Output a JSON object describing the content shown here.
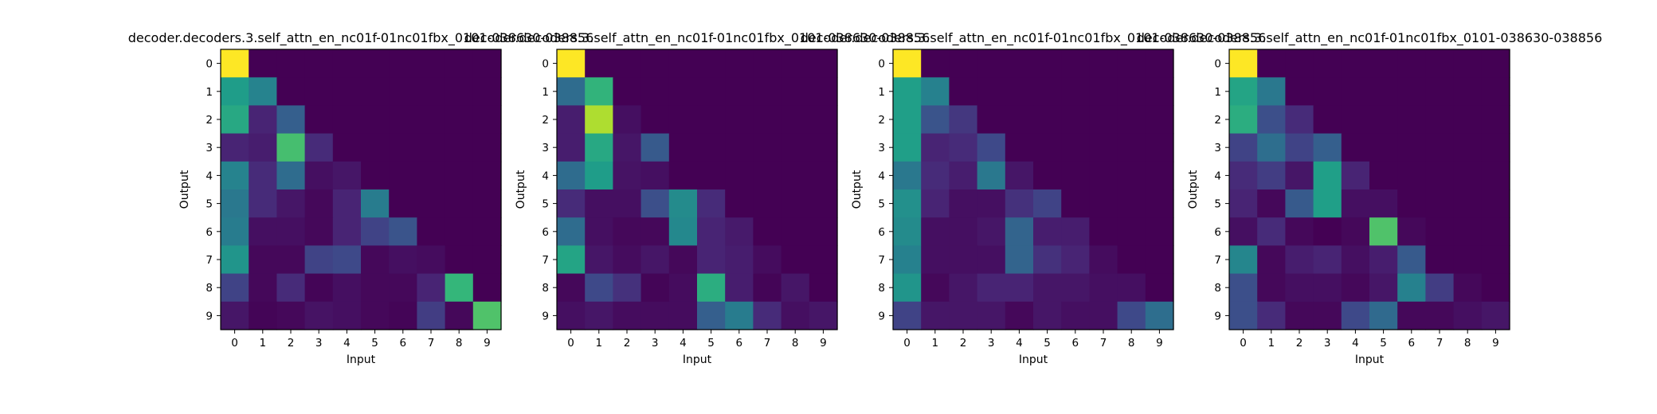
{
  "chart_data": [
    {
      "type": "heatmap",
      "title": "decoder.decoders.3.self_attn_en_nc01f-01nc01fbx_0101-038630-038856",
      "xlabel": "Input",
      "ylabel": "Output",
      "x_ticks": [
        "0",
        "1",
        "2",
        "3",
        "4",
        "5",
        "6",
        "7",
        "8",
        "9"
      ],
      "y_ticks": [
        "0",
        "1",
        "2",
        "3",
        "4",
        "5",
        "6",
        "7",
        "8",
        "9"
      ],
      "colormap": "viridis",
      "value_range": [
        0,
        1
      ],
      "values": [
        [
          1.0,
          0.0,
          0.0,
          0.0,
          0.0,
          0.0,
          0.0,
          0.0,
          0.0,
          0.0
        ],
        [
          0.55,
          0.45,
          0.0,
          0.0,
          0.0,
          0.0,
          0.0,
          0.0,
          0.0,
          0.0
        ],
        [
          0.6,
          0.1,
          0.3,
          0.0,
          0.0,
          0.0,
          0.0,
          0.0,
          0.0,
          0.0
        ],
        [
          0.1,
          0.08,
          0.7,
          0.12,
          0.0,
          0.0,
          0.0,
          0.0,
          0.0,
          0.0
        ],
        [
          0.45,
          0.12,
          0.35,
          0.04,
          0.06,
          0.0,
          0.0,
          0.0,
          0.0,
          0.0
        ],
        [
          0.4,
          0.12,
          0.06,
          0.02,
          0.1,
          0.42,
          0.0,
          0.0,
          0.0,
          0.0
        ],
        [
          0.42,
          0.04,
          0.04,
          0.02,
          0.1,
          0.2,
          0.26,
          0.0,
          0.0,
          0.0
        ],
        [
          0.52,
          0.02,
          0.02,
          0.2,
          0.22,
          0.02,
          0.04,
          0.03,
          0.0,
          0.0
        ],
        [
          0.2,
          0.02,
          0.12,
          0.01,
          0.04,
          0.02,
          0.02,
          0.1,
          0.66,
          0.0
        ],
        [
          0.06,
          0.01,
          0.02,
          0.05,
          0.04,
          0.02,
          0.01,
          0.18,
          0.02,
          0.72
        ]
      ]
    },
    {
      "type": "heatmap",
      "title": "decoder.decoders.3.self_attn_en_nc01f-01nc01fbx_0101-038630-038856",
      "xlabel": "Input",
      "ylabel": "Output",
      "x_ticks": [
        "0",
        "1",
        "2",
        "3",
        "4",
        "5",
        "6",
        "7",
        "8",
        "9"
      ],
      "y_ticks": [
        "0",
        "1",
        "2",
        "3",
        "4",
        "5",
        "6",
        "7",
        "8",
        "9"
      ],
      "colormap": "viridis",
      "value_range": [
        0,
        1
      ],
      "values": [
        [
          1.0,
          0.0,
          0.0,
          0.0,
          0.0,
          0.0,
          0.0,
          0.0,
          0.0,
          0.0
        ],
        [
          0.35,
          0.65,
          0.0,
          0.0,
          0.0,
          0.0,
          0.0,
          0.0,
          0.0,
          0.0
        ],
        [
          0.08,
          0.88,
          0.04,
          0.0,
          0.0,
          0.0,
          0.0,
          0.0,
          0.0,
          0.0
        ],
        [
          0.08,
          0.6,
          0.06,
          0.28,
          0.0,
          0.0,
          0.0,
          0.0,
          0.0,
          0.0
        ],
        [
          0.35,
          0.55,
          0.05,
          0.04,
          0.0,
          0.0,
          0.0,
          0.0,
          0.0,
          0.0
        ],
        [
          0.12,
          0.04,
          0.04,
          0.24,
          0.48,
          0.12,
          0.0,
          0.0,
          0.0,
          0.0
        ],
        [
          0.35,
          0.04,
          0.02,
          0.02,
          0.47,
          0.1,
          0.07,
          0.0,
          0.0,
          0.0
        ],
        [
          0.58,
          0.06,
          0.03,
          0.06,
          0.02,
          0.1,
          0.08,
          0.03,
          0.0,
          0.0
        ],
        [
          0.02,
          0.22,
          0.14,
          0.01,
          0.03,
          0.62,
          0.08,
          0.01,
          0.06,
          0.0
        ],
        [
          0.04,
          0.06,
          0.03,
          0.03,
          0.03,
          0.3,
          0.42,
          0.12,
          0.04,
          0.06
        ]
      ]
    },
    {
      "type": "heatmap",
      "title": "decoder.decoders.3.self_attn_en_nc01f-01nc01fbx_0101-038630-038856",
      "xlabel": "Input",
      "ylabel": "Output",
      "x_ticks": [
        "0",
        "1",
        "2",
        "3",
        "4",
        "5",
        "6",
        "7",
        "8",
        "9"
      ],
      "y_ticks": [
        "0",
        "1",
        "2",
        "3",
        "4",
        "5",
        "6",
        "7",
        "8",
        "9"
      ],
      "colormap": "viridis",
      "value_range": [
        0,
        1
      ],
      "values": [
        [
          1.0,
          0.0,
          0.0,
          0.0,
          0.0,
          0.0,
          0.0,
          0.0,
          0.0,
          0.0
        ],
        [
          0.56,
          0.44,
          0.0,
          0.0,
          0.0,
          0.0,
          0.0,
          0.0,
          0.0,
          0.0
        ],
        [
          0.56,
          0.26,
          0.16,
          0.0,
          0.0,
          0.0,
          0.0,
          0.0,
          0.0,
          0.0
        ],
        [
          0.56,
          0.1,
          0.12,
          0.22,
          0.0,
          0.0,
          0.0,
          0.0,
          0.0,
          0.0
        ],
        [
          0.4,
          0.12,
          0.08,
          0.4,
          0.06,
          0.0,
          0.0,
          0.0,
          0.0,
          0.0
        ],
        [
          0.5,
          0.1,
          0.04,
          0.04,
          0.14,
          0.2,
          0.0,
          0.0,
          0.0,
          0.0
        ],
        [
          0.48,
          0.04,
          0.04,
          0.06,
          0.32,
          0.08,
          0.08,
          0.0,
          0.0,
          0.0
        ],
        [
          0.44,
          0.04,
          0.04,
          0.04,
          0.32,
          0.14,
          0.1,
          0.03,
          0.0,
          0.0
        ],
        [
          0.52,
          0.02,
          0.06,
          0.1,
          0.1,
          0.06,
          0.06,
          0.04,
          0.04,
          0.0
        ],
        [
          0.2,
          0.06,
          0.06,
          0.06,
          0.02,
          0.06,
          0.04,
          0.04,
          0.22,
          0.36
        ]
      ]
    },
    {
      "type": "heatmap",
      "title": "decoder.decoders.3.self_attn_en_nc01f-01nc01fbx_0101-038630-038856",
      "xlabel": "Input",
      "ylabel": "Output",
      "x_ticks": [
        "0",
        "1",
        "2",
        "3",
        "4",
        "5",
        "6",
        "7",
        "8",
        "9"
      ],
      "y_ticks": [
        "0",
        "1",
        "2",
        "3",
        "4",
        "5",
        "6",
        "7",
        "8",
        "9"
      ],
      "colormap": "viridis",
      "value_range": [
        0,
        1
      ],
      "values": [
        [
          1.0,
          0.0,
          0.0,
          0.0,
          0.0,
          0.0,
          0.0,
          0.0,
          0.0,
          0.0
        ],
        [
          0.58,
          0.4,
          0.0,
          0.0,
          0.0,
          0.0,
          0.0,
          0.0,
          0.0,
          0.0
        ],
        [
          0.62,
          0.24,
          0.12,
          0.0,
          0.0,
          0.0,
          0.0,
          0.0,
          0.0,
          0.0
        ],
        [
          0.2,
          0.36,
          0.2,
          0.3,
          0.0,
          0.0,
          0.0,
          0.0,
          0.0,
          0.0
        ],
        [
          0.12,
          0.18,
          0.06,
          0.56,
          0.1,
          0.0,
          0.0,
          0.0,
          0.0,
          0.0
        ],
        [
          0.1,
          0.02,
          0.28,
          0.56,
          0.04,
          0.04,
          0.0,
          0.0,
          0.0,
          0.0
        ],
        [
          0.04,
          0.12,
          0.02,
          0.0,
          0.02,
          0.72,
          0.02,
          0.0,
          0.0,
          0.0
        ],
        [
          0.46,
          0.02,
          0.08,
          0.1,
          0.04,
          0.08,
          0.28,
          0.0,
          0.0,
          0.0
        ],
        [
          0.24,
          0.02,
          0.04,
          0.04,
          0.02,
          0.06,
          0.44,
          0.18,
          0.02,
          0.0
        ],
        [
          0.24,
          0.12,
          0.02,
          0.02,
          0.22,
          0.34,
          0.02,
          0.02,
          0.04,
          0.06
        ]
      ]
    }
  ]
}
